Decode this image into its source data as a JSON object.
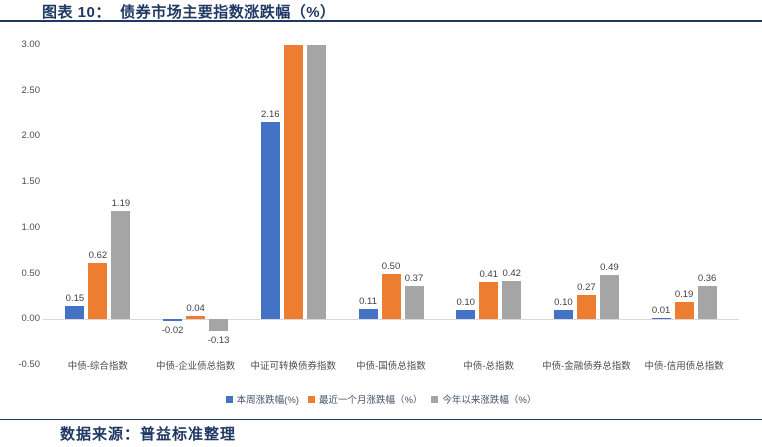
{
  "header": {
    "title": "图表 10：  债券市场主要指数涨跌幅（%）"
  },
  "footer": {
    "source": "数据来源：普益标准整理"
  },
  "colors": {
    "accent_navy": "#1F3864",
    "series_week": "#4472C4",
    "series_month": "#ED7D31",
    "series_ytd": "#A5A5A5",
    "axis_line": "#D9D9D9",
    "label_text": "#404040"
  },
  "chart_data": {
    "type": "bar",
    "title": "债券市场主要指数涨跌幅（%）",
    "categories": [
      "中债-综合指数",
      "中债-企业债总指数",
      "中证可转换债券指数",
      "中债-国债总指数",
      "中债-总指数",
      "中债-金融债券总指数",
      "中债-信用债总指数"
    ],
    "series": [
      {
        "name": "本周涨跌幅(%)",
        "color": "#4472C4",
        "values": [
          0.15,
          -0.02,
          2.16,
          0.11,
          0.1,
          0.1,
          0.01
        ],
        "labels": [
          "0.15",
          "-0.02",
          "2.16",
          "0.11",
          "0.10",
          "0.10",
          "0.01"
        ]
      },
      {
        "name": "最近一个月涨跌幅（%）",
        "color": "#ED7D31",
        "values": [
          0.62,
          0.04,
          3.0,
          0.5,
          0.41,
          0.27,
          0.19
        ],
        "labels": [
          "0.62",
          "0.04",
          null,
          "0.50",
          "0.41",
          "0.27",
          "0.19"
        ]
      },
      {
        "name": "今年以来涨跌幅（%）",
        "color": "#A5A5A5",
        "values": [
          1.19,
          -0.13,
          3.0,
          0.37,
          0.42,
          0.49,
          0.36
        ],
        "labels": [
          "1.19",
          "-0.13",
          null,
          "0.37",
          "0.42",
          "0.49",
          "0.36"
        ]
      }
    ],
    "yticks": [
      "3.00",
      "2.50",
      "2.00",
      "1.50",
      "1.00",
      "0.50",
      "0.00",
      "-0.50"
    ],
    "ylim": [
      -0.5,
      3.0
    ],
    "grid": false,
    "legend_position": "bottom"
  }
}
